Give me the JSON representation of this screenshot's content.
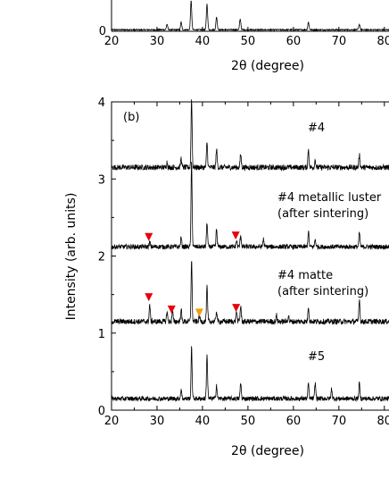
{
  "chart_data": [
    {
      "type": "line",
      "panel": "a",
      "xlabel": "2θ (degree)",
      "xlim": [
        20,
        82
      ],
      "x_ticks": [
        20,
        30,
        40,
        50,
        60,
        70,
        80
      ],
      "y_ticks": [
        0
      ],
      "series": [
        {
          "peaks": [
            {
              "x": 37.5,
              "h": 0.95
            },
            {
              "x": 41.0,
              "h": 0.85
            },
            {
              "x": 43.1,
              "h": 0.42
            },
            {
              "x": 35.3,
              "h": 0.25
            },
            {
              "x": 32.2,
              "h": 0.18
            },
            {
              "x": 48.3,
              "h": 0.35
            },
            {
              "x": 63.3,
              "h": 0.25
            },
            {
              "x": 74.5,
              "h": 0.18
            }
          ]
        }
      ]
    },
    {
      "type": "line",
      "panel": "b",
      "panel_label": "(b)",
      "xlabel": "2θ (degree)",
      "ylabel": "Intensity (arb. units)",
      "xlim": [
        20,
        82
      ],
      "ylim": [
        0,
        4
      ],
      "x_ticks": [
        20,
        30,
        40,
        50,
        60,
        70,
        80
      ],
      "y_ticks": [
        0,
        1,
        2,
        3,
        4
      ],
      "series": [
        {
          "name": "#4",
          "baseline": 3.15,
          "noise": 0.035,
          "peaks": [
            {
              "x": 37.6,
              "h": 0.9
            },
            {
              "x": 41.0,
              "h": 0.33
            },
            {
              "x": 43.1,
              "h": 0.24
            },
            {
              "x": 35.3,
              "h": 0.12
            },
            {
              "x": 48.4,
              "h": 0.17
            },
            {
              "x": 63.3,
              "h": 0.24
            },
            {
              "x": 64.8,
              "h": 0.1
            },
            {
              "x": 74.5,
              "h": 0.17
            },
            {
              "x": 32.2,
              "h": 0.07
            }
          ]
        },
        {
          "name": "#4 metallic luster",
          "name_line2": "(after sintering)",
          "baseline": 2.12,
          "noise": 0.03,
          "peaks": [
            {
              "x": 37.6,
              "h": 1.1
            },
            {
              "x": 41.0,
              "h": 0.32
            },
            {
              "x": 43.1,
              "h": 0.23
            },
            {
              "x": 35.3,
              "h": 0.12
            },
            {
              "x": 28.4,
              "h": 0.06
            },
            {
              "x": 47.5,
              "h": 0.08
            },
            {
              "x": 48.4,
              "h": 0.15
            },
            {
              "x": 53.4,
              "h": 0.1
            },
            {
              "x": 63.3,
              "h": 0.2
            },
            {
              "x": 64.8,
              "h": 0.1
            },
            {
              "x": 74.5,
              "h": 0.18
            }
          ],
          "markers": [
            {
              "x": 28.2,
              "y": 2.24,
              "color": "#e8000b"
            },
            {
              "x": 47.3,
              "y": 2.26,
              "color": "#e8000b"
            }
          ]
        },
        {
          "name": "#4 matte",
          "name_line2": "(after sintering)",
          "baseline": 1.15,
          "noise": 0.035,
          "peaks": [
            {
              "x": 28.4,
              "h": 0.22
            },
            {
              "x": 32.2,
              "h": 0.13
            },
            {
              "x": 33.4,
              "h": 0.14
            },
            {
              "x": 35.3,
              "h": 0.16
            },
            {
              "x": 37.6,
              "h": 0.8
            },
            {
              "x": 39.3,
              "h": 0.08
            },
            {
              "x": 41.0,
              "h": 0.45
            },
            {
              "x": 43.1,
              "h": 0.14
            },
            {
              "x": 47.5,
              "h": 0.13
            },
            {
              "x": 48.4,
              "h": 0.2
            },
            {
              "x": 56.3,
              "h": 0.08
            },
            {
              "x": 58.9,
              "h": 0.08
            },
            {
              "x": 63.3,
              "h": 0.2
            },
            {
              "x": 74.5,
              "h": 0.3
            }
          ],
          "markers": [
            {
              "x": 28.2,
              "y": 1.46,
              "color": "#e8000b"
            },
            {
              "x": 33.2,
              "y": 1.3,
              "color": "#e8000b"
            },
            {
              "x": 39.3,
              "y": 1.26,
              "color": "#f39c12"
            },
            {
              "x": 47.4,
              "y": 1.32,
              "color": "#e8000b"
            }
          ]
        },
        {
          "name": "#5",
          "baseline": 0.15,
          "noise": 0.03,
          "peaks": [
            {
              "x": 37.6,
              "h": 0.66
            },
            {
              "x": 41.0,
              "h": 0.58
            },
            {
              "x": 43.1,
              "h": 0.18
            },
            {
              "x": 35.3,
              "h": 0.12
            },
            {
              "x": 48.4,
              "h": 0.2
            },
            {
              "x": 63.3,
              "h": 0.2
            },
            {
              "x": 64.8,
              "h": 0.2
            },
            {
              "x": 68.4,
              "h": 0.13
            },
            {
              "x": 74.5,
              "h": 0.2
            }
          ]
        }
      ]
    }
  ]
}
